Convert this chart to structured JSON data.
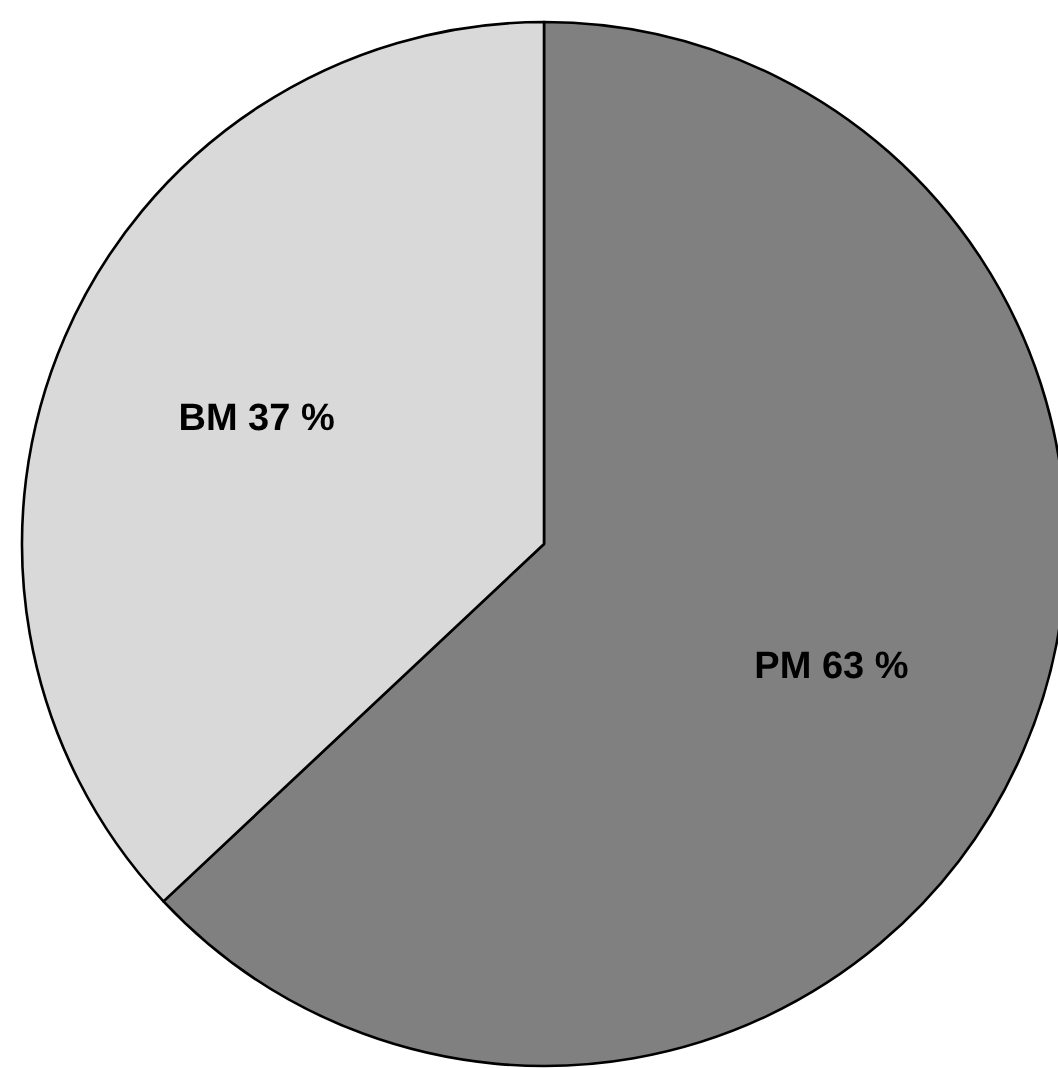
{
  "chart_data": {
    "type": "pie",
    "categories": [
      "PM",
      "BM"
    ],
    "values": [
      63,
      37
    ],
    "colors": [
      "#808080",
      "#d9d9d9"
    ],
    "value_labels": [
      "63 %",
      "37 %"
    ]
  }
}
